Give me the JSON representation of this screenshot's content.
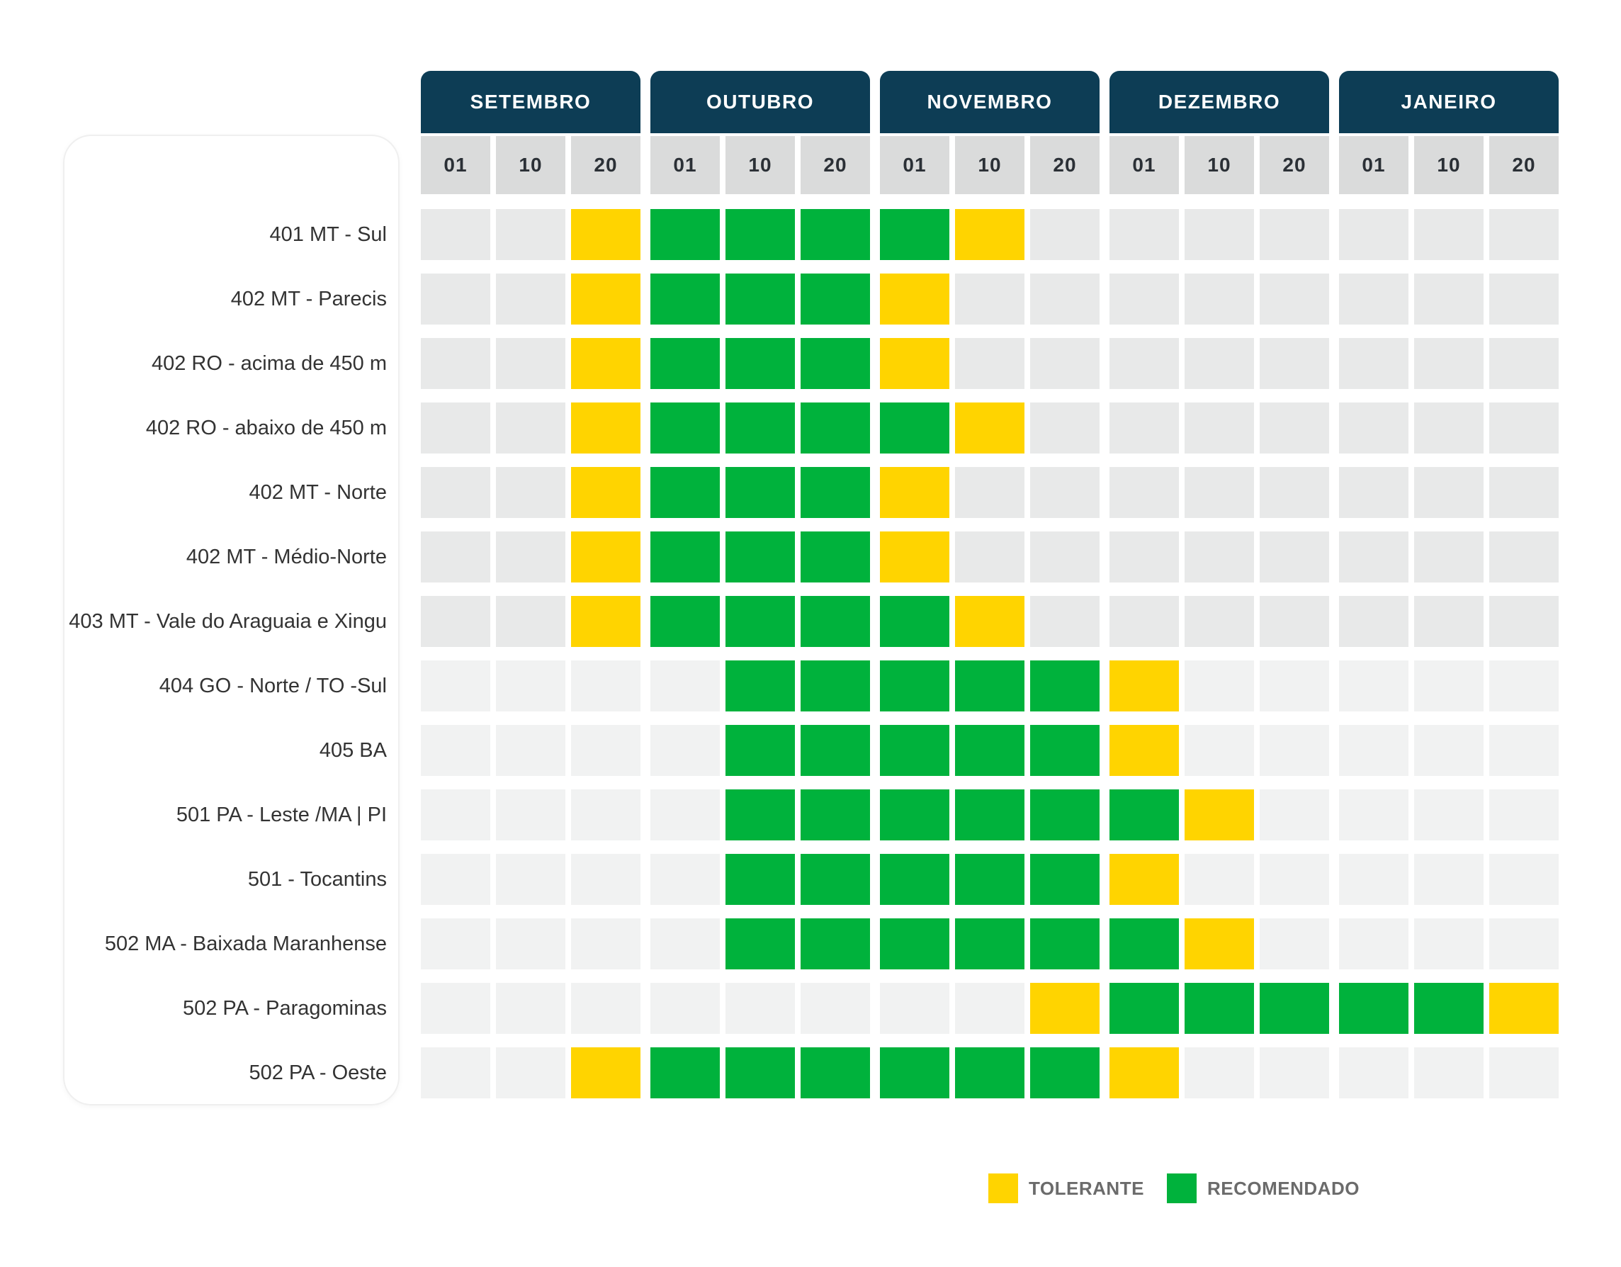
{
  "chart_data": {
    "type": "heatmap",
    "title": "",
    "months": [
      "SETEMBRO",
      "OUTUBRO",
      "NOVEMBRO",
      "DEZEMBRO",
      "JANEIRO"
    ],
    "dekads": [
      "01",
      "10",
      "20"
    ],
    "legend_position": "bottom",
    "legend": [
      {
        "key": "T",
        "label": "TOLERANTE",
        "color": "#FFD400"
      },
      {
        "key": "R",
        "label": "RECOMENDADO",
        "color": "#00B23C"
      }
    ],
    "cell_codes": {
      "T": "tolerante",
      "R": "recomendado",
      "": "none"
    },
    "rows": [
      {
        "label": "401 MT - Sul",
        "group": "dark",
        "cells": [
          "",
          "",
          "T",
          "R",
          "R",
          "R",
          "R",
          "T",
          "",
          "",
          "",
          "",
          "",
          "",
          ""
        ]
      },
      {
        "label": "402 MT - Parecis",
        "group": "dark",
        "cells": [
          "",
          "",
          "T",
          "R",
          "R",
          "R",
          "T",
          "",
          "",
          "",
          "",
          "",
          "",
          "",
          ""
        ]
      },
      {
        "label": "402 RO - acima de 450 m",
        "group": "dark",
        "cells": [
          "",
          "",
          "T",
          "R",
          "R",
          "R",
          "T",
          "",
          "",
          "",
          "",
          "",
          "",
          "",
          ""
        ]
      },
      {
        "label": "402 RO - abaixo de 450 m",
        "group": "dark",
        "cells": [
          "",
          "",
          "T",
          "R",
          "R",
          "R",
          "R",
          "T",
          "",
          "",
          "",
          "",
          "",
          "",
          ""
        ]
      },
      {
        "label": "402 MT - Norte",
        "group": "dark",
        "cells": [
          "",
          "",
          "T",
          "R",
          "R",
          "R",
          "T",
          "",
          "",
          "",
          "",
          "",
          "",
          "",
          ""
        ]
      },
      {
        "label": "402 MT - Médio-Norte",
        "group": "dark",
        "cells": [
          "",
          "",
          "T",
          "R",
          "R",
          "R",
          "T",
          "",
          "",
          "",
          "",
          "",
          "",
          "",
          ""
        ]
      },
      {
        "label": "403 MT - Vale do Araguaia e Xingu",
        "group": "dark",
        "cells": [
          "",
          "",
          "T",
          "R",
          "R",
          "R",
          "R",
          "T",
          "",
          "",
          "",
          "",
          "",
          "",
          ""
        ]
      },
      {
        "label": "404 GO - Norte / TO -Sul",
        "group": "light",
        "cells": [
          "",
          "",
          "",
          "",
          "R",
          "R",
          "R",
          "R",
          "R",
          "T",
          "",
          "",
          "",
          "",
          ""
        ]
      },
      {
        "label": "405 BA",
        "group": "light",
        "cells": [
          "",
          "",
          "",
          "",
          "R",
          "R",
          "R",
          "R",
          "R",
          "T",
          "",
          "",
          "",
          "",
          ""
        ]
      },
      {
        "label": "501 PA - Leste /MA | PI",
        "group": "light",
        "cells": [
          "",
          "",
          "",
          "",
          "R",
          "R",
          "R",
          "R",
          "R",
          "R",
          "T",
          "",
          "",
          "",
          ""
        ]
      },
      {
        "label": "501 - Tocantins",
        "group": "light",
        "cells": [
          "",
          "",
          "",
          "",
          "R",
          "R",
          "R",
          "R",
          "R",
          "T",
          "",
          "",
          "",
          "",
          ""
        ]
      },
      {
        "label": "502 MA - Baixada Maranhense",
        "group": "light",
        "cells": [
          "",
          "",
          "",
          "",
          "R",
          "R",
          "R",
          "R",
          "R",
          "R",
          "T",
          "",
          "",
          "",
          ""
        ]
      },
      {
        "label": "502 PA - Paragominas",
        "group": "light",
        "cells": [
          "",
          "",
          "",
          "",
          "",
          "",
          "",
          "",
          "T",
          "R",
          "R",
          "R",
          "R",
          "R",
          "T"
        ]
      },
      {
        "label": "502 PA - Oeste",
        "group": "light",
        "cells": [
          "",
          "",
          "T",
          "R",
          "R",
          "R",
          "R",
          "R",
          "R",
          "T",
          "",
          "",
          "",
          "",
          ""
        ]
      }
    ],
    "colors": {
      "header_navy": "#0D3D55",
      "subheader_bg": "#DADBDB",
      "subheader_text": "#2B3036",
      "empty_dark": "#E8E9E9",
      "empty_light": "#F1F2F2",
      "tolerante": "#FFD400",
      "recomendado": "#00B23C",
      "row_label_text": "#333333",
      "legend_text": "#6B6B6B"
    }
  }
}
